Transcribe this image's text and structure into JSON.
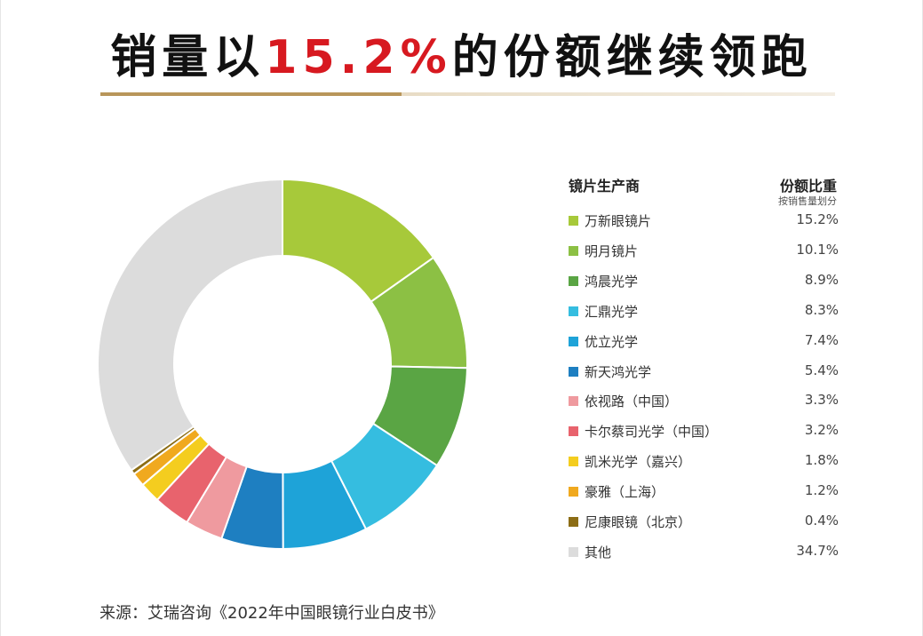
{
  "title": {
    "before": "销量以",
    "highlight": "15.2%",
    "after": "的份额继续领跑"
  },
  "legend": {
    "col_brand": "镜片生产商",
    "col_share": "份额比重",
    "col_share_sub": "按销售量划分"
  },
  "source": "来源：艾瑞咨询《2022年中国眼镜行业白皮书》",
  "chart_data": {
    "type": "pie",
    "donut": true,
    "categories": [
      "万新眼镜片",
      "明月镜片",
      "鸿晨光学",
      "汇鼎光学",
      "优立光学",
      "新天鸿光学",
      "依视路（中国）",
      "卡尔蔡司光学（中国）",
      "凯米光学（嘉兴）",
      "豪雅（上海）",
      "尼康眼镜（北京）",
      "其他"
    ],
    "values": [
      15.2,
      10.1,
      8.9,
      8.3,
      7.4,
      5.4,
      3.3,
      3.2,
      1.8,
      1.2,
      0.4,
      34.7
    ],
    "labels": [
      "15.2%",
      "10.1%",
      "8.9%",
      "8.3%",
      "7.4%",
      "5.4%",
      "3.3%",
      "3.2%",
      "1.8%",
      "1.2%",
      "0.4%",
      "34.7%"
    ],
    "colors": [
      "#a7c93a",
      "#8cc044",
      "#5aa544",
      "#35bde0",
      "#1ea3d8",
      "#1e7fc1",
      "#ef9a9f",
      "#e8636d",
      "#f4cd1f",
      "#f0a91f",
      "#8c6d16",
      "#dcdcdc"
    ],
    "legend_position": "right"
  }
}
